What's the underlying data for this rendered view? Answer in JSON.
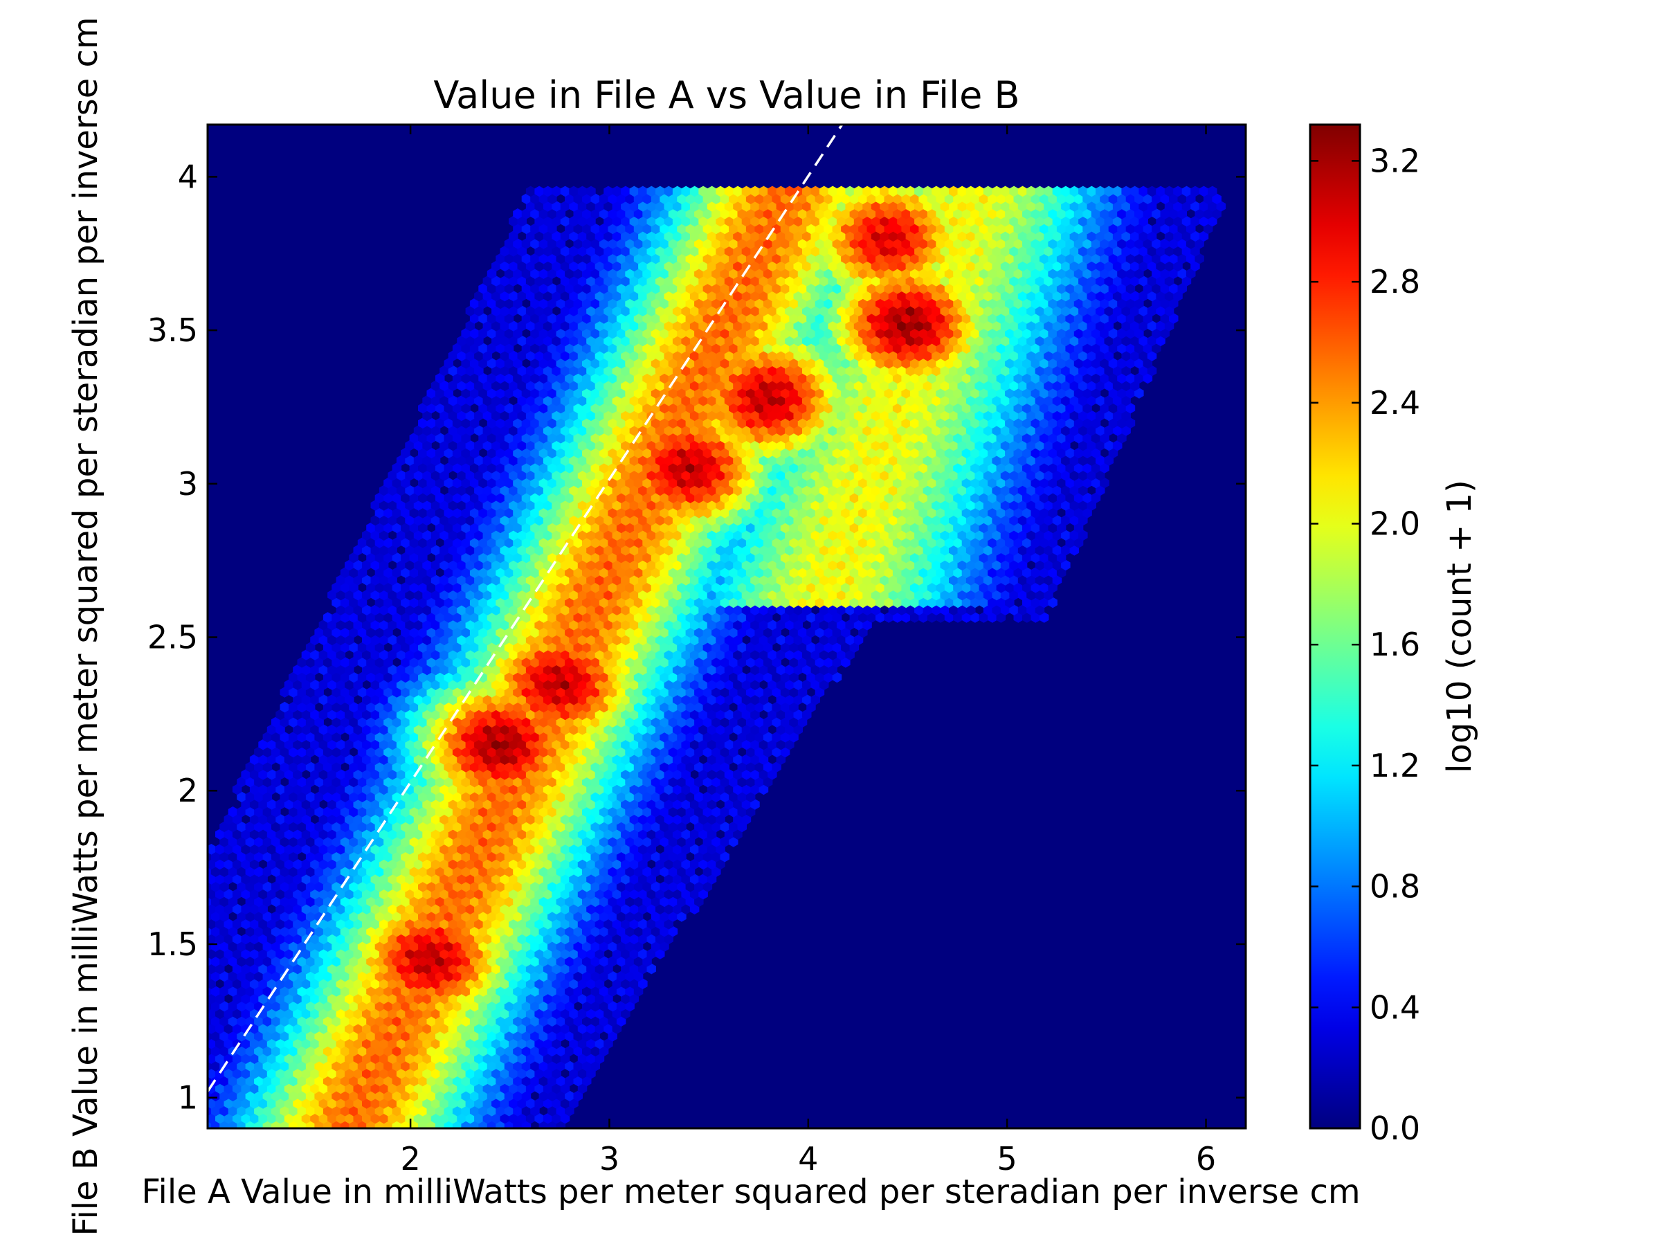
{
  "chart_data": {
    "type": "heatmap",
    "subtype": "hexbin",
    "title": "Value in File A vs Value in File B",
    "xlabel": "File A Value in milliWatts per meter squared per steradian per inverse cm",
    "ylabel": "File B Value in milliWatts per meter squared per steradian per inverse cm",
    "colorbar_label": "log10 (count + 1)",
    "xlim": [
      0.98,
      6.2
    ],
    "ylim": [
      0.9,
      4.17
    ],
    "xticks": [
      2,
      3,
      4,
      5,
      6
    ],
    "xtick_labels": [
      "2",
      "3",
      "4",
      "5",
      "6"
    ],
    "yticks": [
      1,
      1.5,
      2,
      2.5,
      3,
      3.5,
      4
    ],
    "ytick_labels": [
      "1",
      "1.5",
      "2",
      "2.5",
      "3",
      "3.5",
      "4"
    ],
    "colorbar_range": [
      0,
      3.32
    ],
    "colorbar_ticks": [
      0.0,
      0.4,
      0.8,
      1.2,
      1.6,
      2.0,
      2.4,
      2.8,
      3.2
    ],
    "colorbar_tick_labels": [
      "0.0",
      "0.4",
      "0.8",
      "1.2",
      "1.6",
      "2.0",
      "2.4",
      "2.8",
      "3.2"
    ],
    "colormap": "jet",
    "background_color": "#00007f",
    "grid": false,
    "reference_line": {
      "style": "dashed",
      "color": "#ffffff",
      "x": [
        0.98,
        4.17
      ],
      "y": [
        1.02,
        4.17
      ]
    },
    "density_peaks": [
      {
        "x": 2.45,
        "y": 2.15,
        "value": 3.2
      },
      {
        "x": 2.1,
        "y": 1.45,
        "value": 3.1
      },
      {
        "x": 2.75,
        "y": 2.35,
        "value": 3.1
      },
      {
        "x": 3.4,
        "y": 3.05,
        "value": 3.1
      },
      {
        "x": 3.8,
        "y": 3.28,
        "value": 3.1
      },
      {
        "x": 4.5,
        "y": 3.52,
        "value": 3.2
      },
      {
        "x": 4.4,
        "y": 3.8,
        "value": 3.0
      }
    ]
  }
}
